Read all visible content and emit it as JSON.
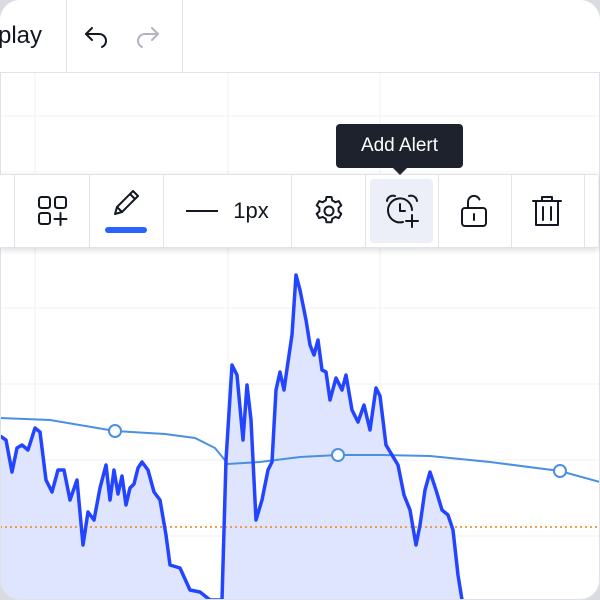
{
  "header": {
    "replay_label": "play",
    "undo_icon": "undo-icon",
    "redo_icon": "redo-icon"
  },
  "tooltip": {
    "text": "Add Alert"
  },
  "drawing_toolbar": {
    "templates_icon": "templates-icon",
    "pencil_icon": "pencil-icon",
    "line_color": "#2962ff",
    "line_width_label": "1px",
    "settings_icon": "gear-icon",
    "alert_icon": "alarm-clock-plus-icon",
    "lock_icon": "unlock-icon",
    "delete_icon": "trash-icon"
  },
  "chart": {
    "colors": {
      "price_line": "#2445ff",
      "price_fill": "#dfe5ff",
      "indicator_line": "#4a90e2",
      "dotted_level": "#f0922e",
      "grid": "#eef0f3"
    }
  }
}
